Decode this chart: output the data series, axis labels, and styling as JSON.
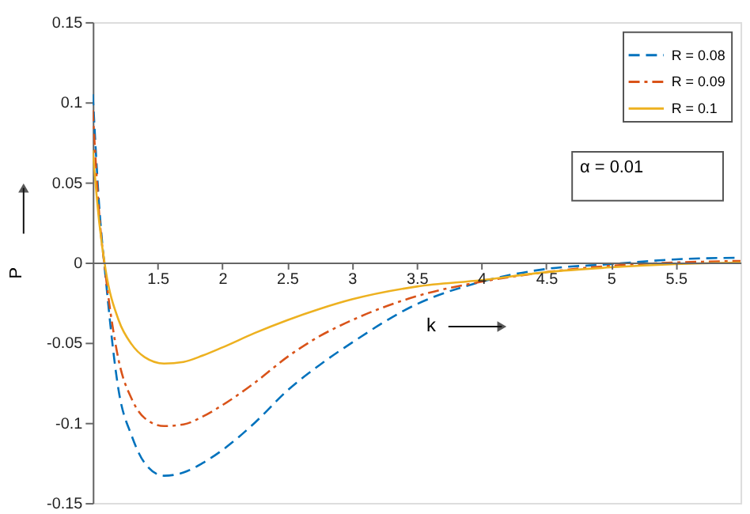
{
  "chart_data": {
    "type": "line",
    "xlabel": "k",
    "ylabel": "P",
    "annotations": [
      "α = 0.01"
    ],
    "x": [
      1.0,
      1.05,
      1.1,
      1.2,
      1.3,
      1.4,
      1.55,
      1.7,
      1.85,
      2.0,
      2.25,
      2.5,
      2.75,
      3.0,
      3.5,
      4.0,
      4.5,
      5.0,
      5.5,
      6.0
    ],
    "series": [
      {
        "name": "R = 0.08",
        "color": "#0072bd",
        "line_style": "dashed",
        "values": [
          0.105,
          0.035,
          -0.01,
          -0.08,
          -0.108,
          -0.125,
          -0.133,
          -0.131,
          -0.125,
          -0.117,
          -0.1,
          -0.08,
          -0.064,
          -0.05,
          -0.026,
          -0.012,
          -0.004,
          -0.001,
          0.002,
          0.003
        ]
      },
      {
        "name": "R = 0.09",
        "color": "#d95319",
        "line_style": "dashdot",
        "values": [
          0.095,
          0.03,
          -0.008,
          -0.061,
          -0.085,
          -0.097,
          -0.102,
          -0.101,
          -0.096,
          -0.089,
          -0.075,
          -0.059,
          -0.046,
          -0.036,
          -0.021,
          -0.012,
          -0.006,
          -0.002,
          0.0,
          0.001
        ]
      },
      {
        "name": "R = 0.1",
        "color": "#edb120",
        "line_style": "solid",
        "values": [
          0.07,
          0.025,
          -0.005,
          -0.036,
          -0.051,
          -0.059,
          -0.063,
          -0.062,
          -0.058,
          -0.053,
          -0.044,
          -0.036,
          -0.029,
          -0.023,
          -0.015,
          -0.011,
          -0.006,
          -0.003,
          -0.001,
          0.0
        ]
      }
    ],
    "xlim": [
      1,
      6
    ],
    "xticks": [
      1.5,
      2,
      2.5,
      3,
      3.5,
      4,
      4.5,
      5,
      5.5
    ],
    "ylim": [
      -0.15,
      0.15
    ],
    "yticks": [
      -0.15,
      -0.1,
      -0.05,
      0,
      0.05,
      0.1,
      0.15
    ],
    "legend": "top right",
    "grid": false,
    "marker": "none"
  }
}
